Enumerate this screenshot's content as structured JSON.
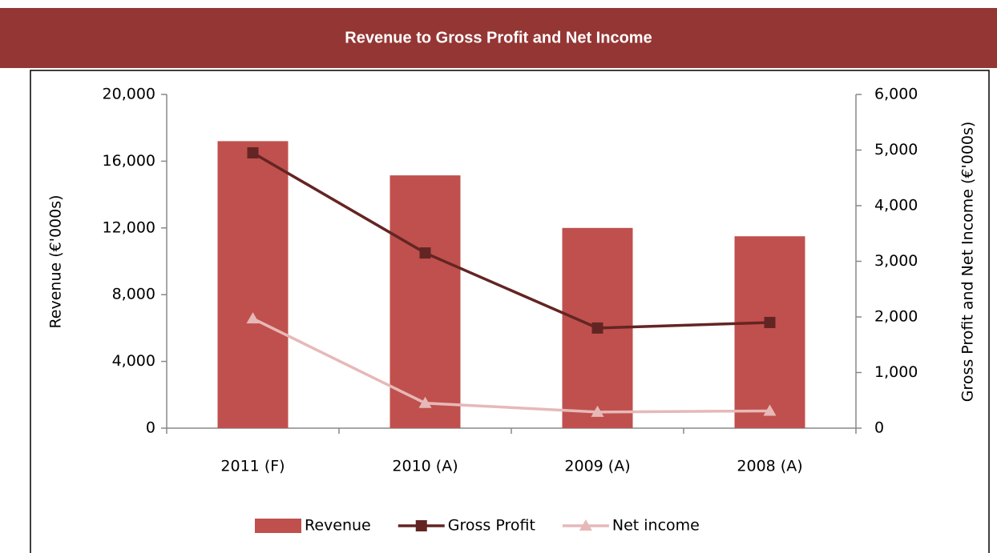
{
  "chart_data": {
    "type": "bar_line",
    "title": "Revenue to Gross Profit and Net Income",
    "y_label": "Revenue (€'000s)",
    "y2_label": "Gross Profit and Net Income (€'000s)",
    "categories": [
      "2011 (F)",
      "2010 (A)",
      "2009 (A)",
      "2008 (A)"
    ],
    "series": [
      {
        "name": "Revenue",
        "type": "bar",
        "color": "#c0504d",
        "values": [
          17200,
          15150,
          12000,
          11500
        ]
      },
      {
        "name": "Gross Profit",
        "type": "line",
        "marker": "square",
        "axis": "y2",
        "color": "#632523",
        "values": [
          4950,
          3150,
          1800,
          1900
        ]
      },
      {
        "name": "Net income",
        "type": "line",
        "marker": "triangle",
        "axis": "y2",
        "color": "#e6b9b8",
        "values": [
          1970,
          450,
          290,
          310
        ]
      }
    ],
    "ylim": [
      0,
      20000
    ],
    "yticks": [
      0,
      {
        "value": 4000,
        "label": "4,000"
      },
      {
        "value": 8000,
        "label": "8,000"
      },
      {
        "value": 12000,
        "label": "12,000"
      },
      {
        "value": 16000,
        "label": "16,000"
      },
      {
        "value": 20000,
        "label": "20,000"
      }
    ],
    "y2lim": [
      0,
      6000
    ],
    "y2ticks": [
      0,
      {
        "value": 1000,
        "label": "1,000"
      },
      {
        "value": 2000,
        "label": "2,000"
      },
      {
        "value": 3000,
        "label": "3,000"
      },
      {
        "value": 4000,
        "label": "4,000"
      },
      {
        "value": 5000,
        "label": "5,000"
      },
      {
        "value": 6000,
        "label": "6,000"
      }
    ],
    "legend": "bottom"
  }
}
